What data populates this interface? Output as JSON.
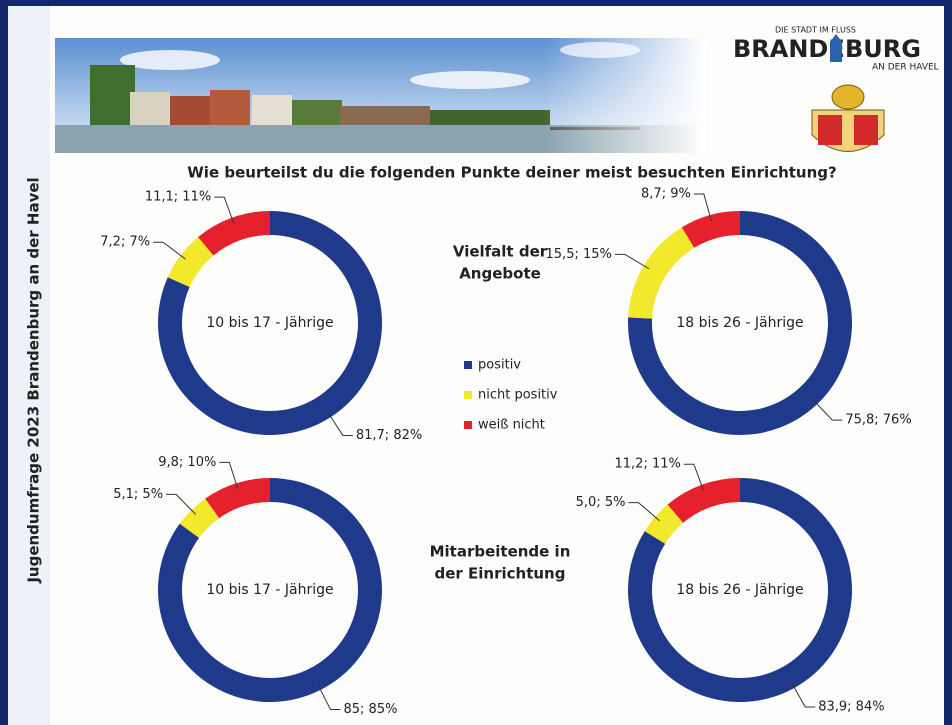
{
  "sidebar": "Jugendumfrage 2023 Brandenburg an der Havel",
  "logo": {
    "tagline": "DIE STADT IM FLUSS",
    "name_start": "BRANDE",
    "name_end": "BURG",
    "subline": "AN DER HAVEL"
  },
  "title": "Wie beurteilst du die folgenden Punkte deiner meist besuchten Einrichtung?",
  "sections": [
    [
      "Vielfalt der",
      "Angebote"
    ],
    [
      "Mitarbeitende in",
      "der Einrichtung"
    ]
  ],
  "legend": {
    "labels": [
      "positiv",
      "nicht positiv",
      "weiß nicht"
    ],
    "colors": [
      "#1f3a8a",
      "#f2e82c",
      "#e6202c"
    ]
  },
  "chart_data": [
    {
      "type": "donut",
      "center_label": "10 bis 17 - Jährige",
      "values": [
        81.7,
        7.2,
        11.1
      ],
      "value_labels": [
        "81,7; 82%",
        "7,2; 7%",
        "11,1; 11%"
      ]
    },
    {
      "type": "donut",
      "center_label": "18 bis 26 - Jährige",
      "values": [
        75.8,
        15.5,
        8.7
      ],
      "value_labels": [
        "75,8; 76%",
        "15,5; 15%",
        "8,7; 9%"
      ]
    },
    {
      "type": "donut",
      "center_label": "10 bis 17 - Jährige",
      "values": [
        85,
        5.1,
        9.8
      ],
      "value_labels": [
        "85; 85%",
        "5,1; 5%",
        "9,8; 10%"
      ]
    },
    {
      "type": "donut",
      "center_label": "18 bis 26 - Jährige",
      "values": [
        83.9,
        5.0,
        11.2
      ],
      "value_labels": [
        "83,9; 84%",
        "5,0; 5%",
        "11,2; 11%"
      ]
    }
  ]
}
